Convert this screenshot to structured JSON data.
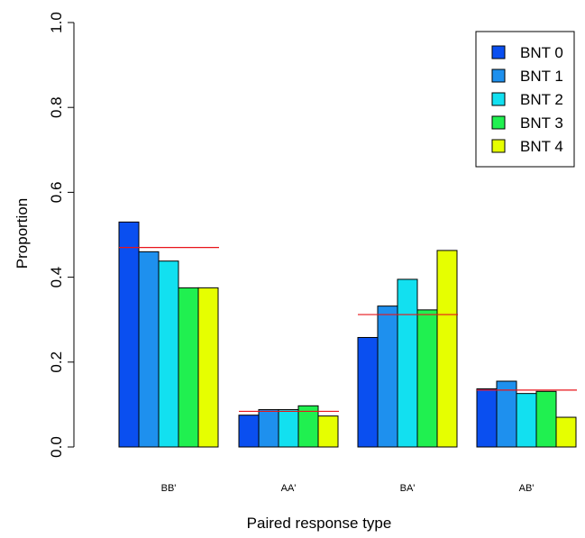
{
  "chart_data": {
    "type": "bar",
    "title": "",
    "xlabel": "Paired response type",
    "ylabel": "Proportion",
    "ylim": [
      0,
      1
    ],
    "yticks": [
      0.0,
      0.2,
      0.4,
      0.6,
      0.8,
      1.0
    ],
    "ytick_labels": [
      "0.0",
      "0.2",
      "0.4",
      "0.6",
      "0.8",
      "1.0"
    ],
    "categories": [
      "BB'",
      "AA'",
      "BA'",
      "AB'"
    ],
    "series": [
      {
        "name": "BNT 0",
        "color": "#0a4ff0",
        "values": [
          0.53,
          0.075,
          0.258,
          0.137
        ]
      },
      {
        "name": "BNT 1",
        "color": "#1e90ee",
        "values": [
          0.46,
          0.088,
          0.332,
          0.155
        ]
      },
      {
        "name": "BNT 2",
        "color": "#12e0f0",
        "values": [
          0.438,
          0.088,
          0.395,
          0.126
        ]
      },
      {
        "name": "BNT 3",
        "color": "#20f050",
        "values": [
          0.375,
          0.097,
          0.323,
          0.131
        ]
      },
      {
        "name": "BNT 4",
        "color": "#e6ff00",
        "values": [
          0.375,
          0.073,
          0.463,
          0.07
        ]
      }
    ],
    "reference_lines": [
      0.47,
      0.084,
      0.312,
      0.134
    ],
    "reference_color": "#e8141a",
    "grid": false,
    "legend_position": "top-right"
  }
}
